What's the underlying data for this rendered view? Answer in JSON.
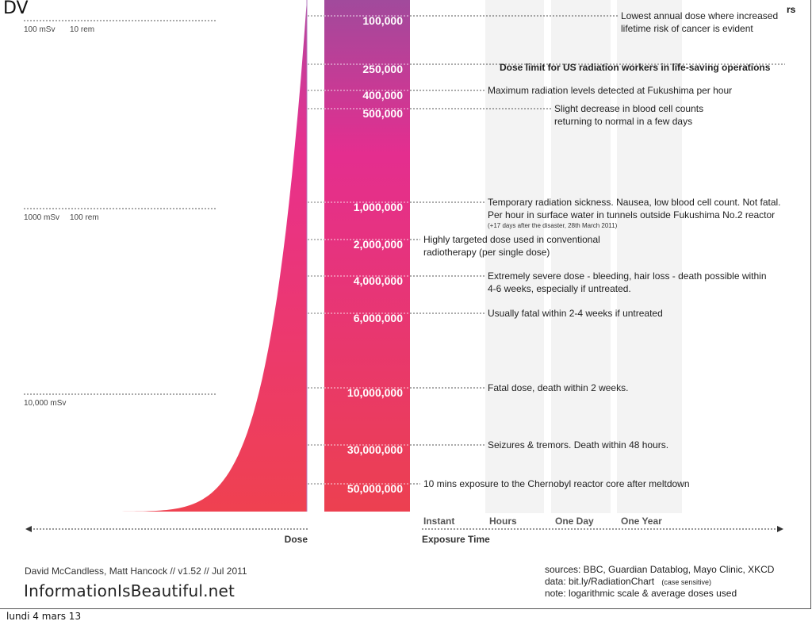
{
  "window_fragments": {
    "left": "DV",
    "right": "rs"
  },
  "chart_data": {
    "type": "area",
    "yscale": "log",
    "left_axis_marks": [
      {
        "label": "100 mSv",
        "label2": "10 rem"
      },
      {
        "label": "1000 mSv",
        "label2": "100 rem"
      },
      {
        "label": "10,000 mSv",
        "label2": ""
      }
    ],
    "dose_levels": [
      {
        "value": 100000,
        "label": "100,000",
        "annotation": [
          "Lowest annual dose where increased",
          "lifetime risk of cancer is evident"
        ],
        "col": "oneyear",
        "bold": false
      },
      {
        "value": 250000,
        "label": "250,000",
        "annotation": [
          "Dose limit for US radiation workers in life-saving operations"
        ],
        "col": "center",
        "bold": true
      },
      {
        "value": 400000,
        "label": "400,000",
        "annotation": [
          "Maximum radiation levels detected at Fukushima per hour"
        ],
        "col": "hours",
        "bold": false
      },
      {
        "value": 500000,
        "label": "500,000",
        "annotation": [
          "Slight decrease in blood cell counts",
          "returning to normal in a few days"
        ],
        "col": "oneday",
        "bold": false
      },
      {
        "value": 1000000,
        "label": "1,000,000",
        "annotation": [
          "Temporary radiation sickness. Nausea, low blood cell count. Not fatal.",
          "Per hour in surface water in tunnels outside Fukushima No.2 reactor"
        ],
        "note": "(+17 days after the disaster, 28th March 2011)",
        "col": "hours",
        "bold": false
      },
      {
        "value": 2000000,
        "label": "2,000,000",
        "annotation": [
          "Highly targeted dose used in conventional",
          "radiotherapy (per single dose)"
        ],
        "col": "instant",
        "bold": false
      },
      {
        "value": 4000000,
        "label": "4,000,000",
        "annotation": [
          "Extremely severe dose - bleeding, hair loss - death possible within",
          "4-6 weeks, especially if untreated."
        ],
        "col": "hours",
        "bold": false
      },
      {
        "value": 6000000,
        "label": "6,000,000",
        "annotation": [
          "Usually fatal within 2-4 weeks if untreated"
        ],
        "col": "hours",
        "bold": false
      },
      {
        "value": 10000000,
        "label": "10,000,000",
        "annotation": [
          "Fatal dose, death within 2 weeks."
        ],
        "col": "hours",
        "bold": false
      },
      {
        "value": 30000000,
        "label": "30,000,000",
        "annotation": [
          "Seizures & tremors. Death within 48 hours."
        ],
        "col": "hours",
        "bold": false
      },
      {
        "value": 50000000,
        "label": "50,000,000",
        "annotation": [
          "10 mins exposure to the Chernobyl reactor core after meltdown"
        ],
        "col": "instant",
        "bold": false
      }
    ],
    "exposure_columns": [
      "Instant",
      "Hours",
      "One Day",
      "One Year"
    ],
    "xlabel_left": "Dose",
    "xlabel_right": "Exposure Time",
    "gradient_colors": [
      "#a8479a",
      "#e42e91",
      "#ec4160"
    ]
  },
  "credits": {
    "authors": "David McCandless, Matt Hancock // v1.52 // Jul 2011",
    "brand": "InformationIsBeautiful.net",
    "sources": "sources: BBC, Guardian Datablog, Mayo Clinic, XKCD",
    "data_prefix": "data: bit.ly/RadiationChart",
    "data_suffix": "(case sensitive)",
    "note": "note: logarithmic scale & average doses used"
  },
  "footer": {
    "date": "lundi 4 mars 13"
  }
}
